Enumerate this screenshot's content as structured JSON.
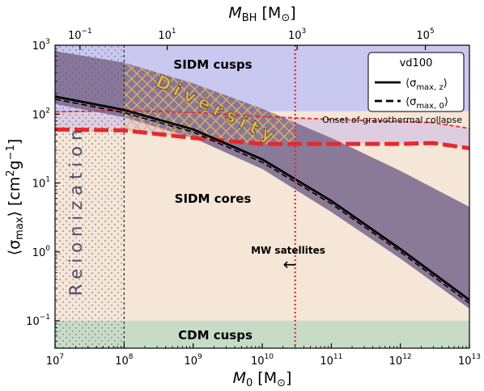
{
  "chart_data": {
    "type": "area",
    "x_scale": "log",
    "y_scale": "log",
    "xlim": [
      10000000,
      10000000000000
    ],
    "ylim": [
      0.04,
      1000
    ],
    "xlabel": {
      "main": "M",
      "sub": "0",
      "unit": " [M",
      "unit_sub": "⊙",
      "unit_end": "]"
    },
    "ylabel": {
      "main": "⟨σ",
      "sub": "max",
      "rest": "⟩ [cm",
      "sup": "2",
      "rest2": "g",
      "sup2": "−1",
      "end": "]"
    },
    "top_axis": {
      "label": {
        "main": "M",
        "sub": "BH",
        "unit": " [M",
        "unit_sub": "⊙",
        "unit_end": "]"
      },
      "ticks": [
        {
          "m0": 23000000,
          "base": "10",
          "exp": "−1"
        },
        {
          "m0": 420000000,
          "base": "10",
          "exp": "1"
        },
        {
          "m0": 32000000000,
          "base": "10",
          "exp": "3"
        },
        {
          "m0": 2300000000000,
          "base": "10",
          "exp": "5"
        }
      ]
    },
    "x_ticks": [
      {
        "value": 10000000,
        "base": "10",
        "exp": "7"
      },
      {
        "value": 100000000,
        "base": "10",
        "exp": "8"
      },
      {
        "value": 1000000000,
        "base": "10",
        "exp": "9"
      },
      {
        "value": 10000000000,
        "base": "10",
        "exp": "10"
      },
      {
        "value": 100000000000,
        "base": "10",
        "exp": "11"
      },
      {
        "value": 1000000000000,
        "base": "10",
        "exp": "12"
      },
      {
        "value": 10000000000000,
        "base": "10",
        "exp": "13"
      }
    ],
    "y_ticks": [
      {
        "value": 0.1,
        "base": "10",
        "exp": "−1"
      },
      {
        "value": 1,
        "base": "10",
        "exp": "0"
      },
      {
        "value": 10,
        "base": "10",
        "exp": "1"
      },
      {
        "value": 100,
        "base": "10",
        "exp": "2"
      },
      {
        "value": 1000,
        "base": "10",
        "exp": "3"
      }
    ],
    "regions": {
      "sidm_cusps_color": "#c8c8f0",
      "sidm_cores_color": "#f5e6d7",
      "cdm_cusps_color": "#c6dcc6",
      "cdm_cusps_ymax": 0.1,
      "diversity_band_color": "#857395",
      "hatch_color": "#e2b45a",
      "reionization_xmax": 100000000,
      "mw_satellites_x": 30000000000
    },
    "gravothermal_upper": [
      {
        "x": 10000000,
        "y": 108
      },
      {
        "x": 100000000,
        "y": 112
      },
      {
        "x": 1000000000,
        "y": 106
      },
      {
        "x": 10000000000,
        "y": 92
      },
      {
        "x": 100000000000,
        "y": 84
      },
      {
        "x": 1000000000000,
        "y": 78
      },
      {
        "x": 3000000000000,
        "y": 75
      },
      {
        "x": 10000000000000,
        "y": 62
      }
    ],
    "gravothermal_lower": [
      {
        "x": 10000000,
        "y": 60
      },
      {
        "x": 100000000,
        "y": 58
      },
      {
        "x": 1000000000,
        "y": 45
      },
      {
        "x": 10000000000,
        "y": 37
      },
      {
        "x": 100000000000,
        "y": 37
      },
      {
        "x": 1000000000000,
        "y": 37
      },
      {
        "x": 3000000000000,
        "y": 38
      },
      {
        "x": 10000000000000,
        "y": 32
      }
    ],
    "band_upper": [
      {
        "x": 10000000,
        "y": 820
      },
      {
        "x": 100000000,
        "y": 560
      },
      {
        "x": 1000000000,
        "y": 280
      },
      {
        "x": 10000000000,
        "y": 120
      },
      {
        "x": 100000000000,
        "y": 45
      },
      {
        "x": 1000000000000,
        "y": 15
      },
      {
        "x": 10000000000000,
        "y": 4.5
      }
    ],
    "band_lower": [
      {
        "x": 10000000,
        "y": 140
      },
      {
        "x": 100000000,
        "y": 90
      },
      {
        "x": 1000000000,
        "y": 45
      },
      {
        "x": 10000000000,
        "y": 16
      },
      {
        "x": 100000000000,
        "y": 3.8
      },
      {
        "x": 1000000000000,
        "y": 0.8
      },
      {
        "x": 10000000000000,
        "y": 0.15
      }
    ],
    "series": [
      {
        "name": "⟨σ_max,z⟩",
        "legend": {
          "main": "⟨σ",
          "sub": "max, z",
          "end": "⟩"
        },
        "style": "solid",
        "color": "#000000",
        "points": [
          {
            "x": 10000000,
            "y": 180
          },
          {
            "x": 100000000,
            "y": 115
          },
          {
            "x": 1000000000,
            "y": 60
          },
          {
            "x": 10000000000,
            "y": 22
          },
          {
            "x": 100000000000,
            "y": 5.5
          },
          {
            "x": 1000000000000,
            "y": 1.1
          },
          {
            "x": 10000000000000,
            "y": 0.2
          }
        ]
      },
      {
        "name": "⟨σ_max,0⟩",
        "legend": {
          "main": "⟨σ",
          "sub": "max, 0",
          "end": "⟩"
        },
        "style": "dashed",
        "color": "#000000",
        "points": [
          {
            "x": 10000000,
            "y": 165
          },
          {
            "x": 100000000,
            "y": 105
          },
          {
            "x": 1000000000,
            "y": 55
          },
          {
            "x": 10000000000,
            "y": 20
          },
          {
            "x": 100000000000,
            "y": 5
          },
          {
            "x": 1000000000000,
            "y": 1
          },
          {
            "x": 10000000000000,
            "y": 0.18
          }
        ]
      }
    ],
    "legend_title": "vd100",
    "legend_position": "top-right",
    "annotations": {
      "sidm_cusps": "SIDM cusps",
      "sidm_cores": "SIDM cores",
      "cdm_cusps": "CDM cusps",
      "diversity": "Diversity",
      "reionization": "Reionization",
      "mw_satellites": "MW satellites",
      "arrow": "←",
      "gravothermal": "Onset of gravothermal collapse"
    },
    "grid": false
  }
}
